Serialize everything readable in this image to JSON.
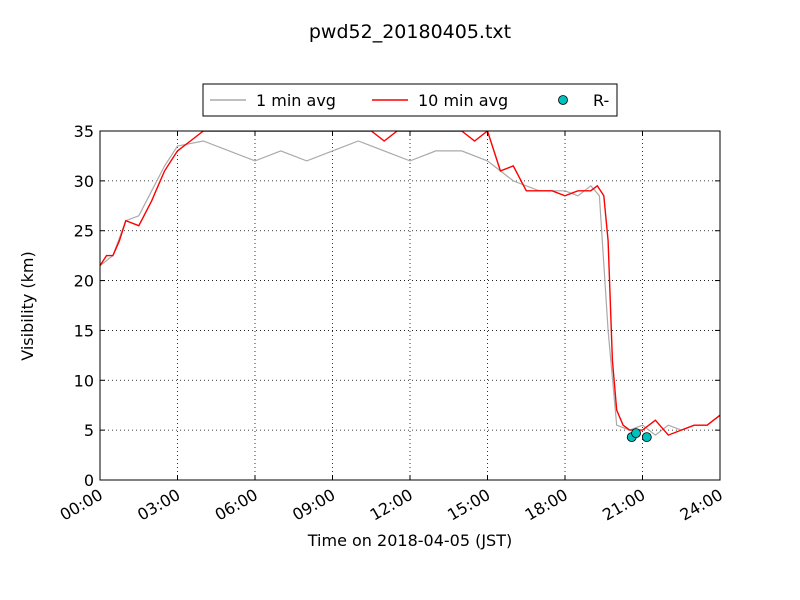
{
  "chart_data": {
    "type": "line",
    "title": "pwd52_20180405.txt",
    "xlabel": "Time on 2018-04-05 (JST)",
    "ylabel": "Visibility (km)",
    "xlim": [
      "00:00",
      "24:00"
    ],
    "ylim": [
      0,
      35
    ],
    "x_ticks": [
      "00:00",
      "03:00",
      "06:00",
      "09:00",
      "12:00",
      "15:00",
      "18:00",
      "21:00",
      "24:00"
    ],
    "y_ticks": [
      "0",
      "5",
      "10",
      "15",
      "20",
      "25",
      "30",
      "35"
    ],
    "grid": true,
    "legend_position": "top-center",
    "series": [
      {
        "name": "1 min avg",
        "color": "#aaaaaa",
        "style": "line",
        "x": [
          "00:00",
          "00:30",
          "01:00",
          "01:30",
          "02:00",
          "02:30",
          "03:00",
          "04:00",
          "05:00",
          "06:00",
          "07:00",
          "08:00",
          "09:00",
          "10:00",
          "11:00",
          "12:00",
          "13:00",
          "14:00",
          "15:00",
          "16:00",
          "17:00",
          "18:00",
          "18:30",
          "19:00",
          "19:20",
          "19:40",
          "20:00",
          "20:30",
          "21:00",
          "21:30",
          "22:00",
          "22:30",
          "23:00",
          "23:30",
          "24:00"
        ],
        "values": [
          21.5,
          22.5,
          26,
          26.5,
          29,
          31.5,
          33.5,
          34,
          33,
          32,
          33,
          32,
          33,
          34,
          33,
          32,
          33,
          33,
          32,
          30,
          29,
          29,
          28.5,
          29.5,
          28.5,
          15,
          5.5,
          5,
          5.5,
          4.5,
          5.5,
          5,
          5.5,
          5.5,
          6.5
        ]
      },
      {
        "name": "10 min avg",
        "color": "#ff0000",
        "style": "line",
        "x": [
          "00:00",
          "00:15",
          "00:30",
          "00:45",
          "01:00",
          "01:30",
          "02:00",
          "02:15",
          "02:30",
          "02:45",
          "03:00",
          "03:30",
          "04:00",
          "05:00",
          "06:00",
          "07:00",
          "08:00",
          "09:00",
          "10:00",
          "10:30",
          "11:00",
          "11:30",
          "12:00",
          "13:00",
          "13:30",
          "14:00",
          "14:30",
          "15:00",
          "15:30",
          "16:00",
          "16:30",
          "17:00",
          "17:30",
          "18:00",
          "18:30",
          "19:00",
          "19:15",
          "19:30",
          "19:40",
          "19:50",
          "20:00",
          "20:15",
          "20:30",
          "21:00",
          "21:30",
          "22:00",
          "22:30",
          "23:00",
          "23:30",
          "24:00"
        ],
        "values": [
          21.5,
          22.5,
          22.5,
          24,
          26,
          25.5,
          28,
          29.5,
          31,
          32,
          33,
          34,
          35,
          35,
          35,
          35,
          35,
          35,
          35,
          35,
          34,
          35,
          35,
          35,
          35,
          35,
          34,
          35,
          31,
          31.5,
          29,
          29,
          29,
          28.5,
          29,
          29,
          29.5,
          28.5,
          24,
          12,
          7,
          5.5,
          5,
          5,
          6,
          4.5,
          5,
          5.5,
          5.5,
          6.5
        ]
      },
      {
        "name": "R-",
        "color": "#00bfbf",
        "style": "marker",
        "x": [
          "20:35",
          "20:45",
          "21:10"
        ],
        "values": [
          4.3,
          4.7,
          4.3
        ]
      }
    ]
  }
}
